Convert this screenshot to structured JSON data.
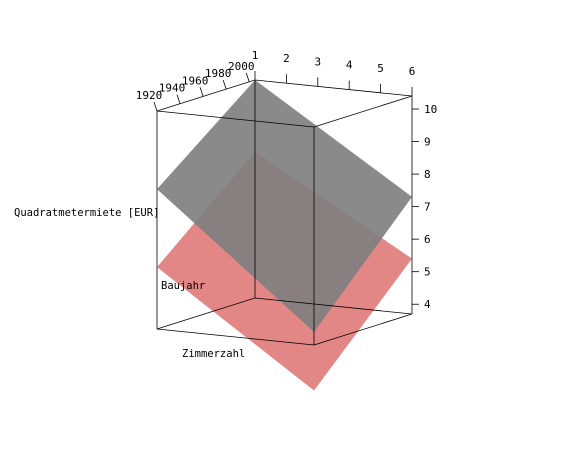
{
  "chart_data": {
    "type": "surface3d",
    "axes": {
      "baujahr": {
        "label": "Baujahr",
        "range": [
          1920,
          2005
        ],
        "ticks": [
          1920,
          1940,
          1960,
          1980,
          2000
        ]
      },
      "zimmerzahl": {
        "label": "Zimmerzahl",
        "range": [
          1,
          6
        ],
        "ticks": [
          1,
          2,
          3,
          4,
          5,
          6
        ]
      },
      "miete": {
        "label": "Quadratmetermiete [EUR]",
        "range": [
          3.7,
          10.4
        ],
        "ticks": [
          4,
          5,
          6,
          7,
          8,
          9,
          10
        ]
      }
    },
    "planes": [
      {
        "color": "#808080",
        "corners": [
          {
            "baujahr": 1920,
            "zimmerzahl": 1,
            "miete": 8.0
          },
          {
            "baujahr": 2005,
            "zimmerzahl": 1,
            "miete": 10.4
          },
          {
            "baujahr": 2005,
            "zimmerzahl": 6,
            "miete": 7.3
          },
          {
            "baujahr": 1920,
            "zimmerzahl": 6,
            "miete": 4.1
          }
        ]
      },
      {
        "color": "#e08080",
        "corners": [
          {
            "baujahr": 1920,
            "zimmerzahl": 1,
            "miete": 5.6
          },
          {
            "baujahr": 2005,
            "zimmerzahl": 1,
            "miete": 8.2
          },
          {
            "baujahr": 2005,
            "zimmerzahl": 6,
            "miete": 5.4
          },
          {
            "baujahr": 1920,
            "zimmerzahl": 6,
            "miete": 2.3
          }
        ]
      }
    ],
    "grid": false,
    "legend": "none"
  }
}
